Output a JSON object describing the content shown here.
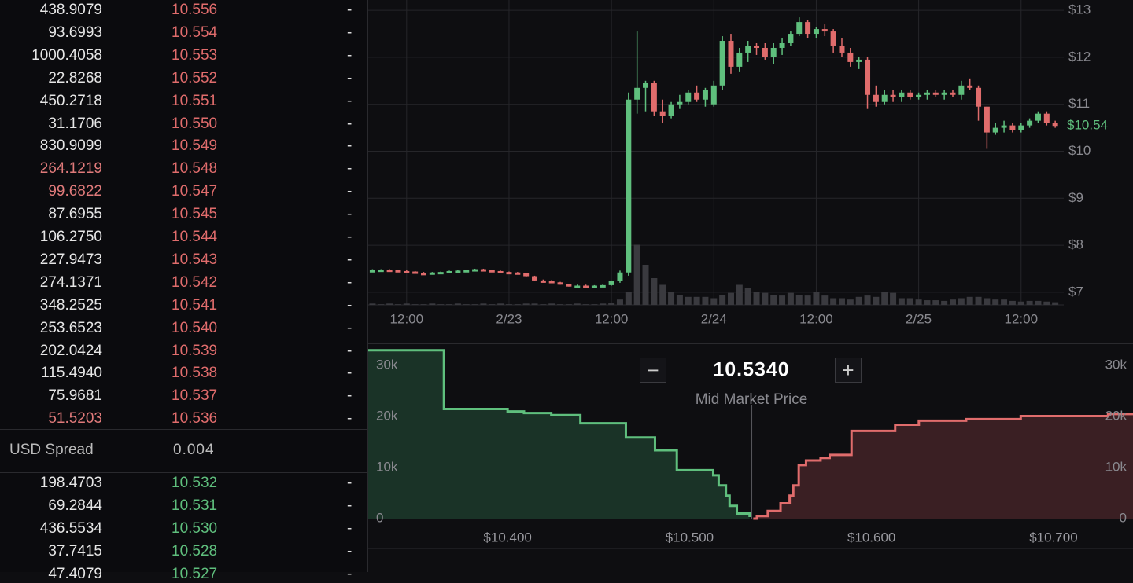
{
  "order_book": {
    "asks": [
      {
        "size": "438.9079",
        "price": "10.556",
        "change": "-"
      },
      {
        "size": "93.6993",
        "price": "10.554",
        "change": "-"
      },
      {
        "size": "1000.4058",
        "price": "10.553",
        "change": "-"
      },
      {
        "size": "22.8268",
        "price": "10.552",
        "change": "-"
      },
      {
        "size": "450.2718",
        "price": "10.551",
        "change": "-"
      },
      {
        "size": "31.1706",
        "price": "10.550",
        "change": "-"
      },
      {
        "size": "830.9099",
        "price": "10.549",
        "change": "-"
      },
      {
        "size": "264.1219",
        "price": "10.548",
        "change": "-",
        "highlight": true
      },
      {
        "size": "99.6822",
        "price": "10.547",
        "change": "-",
        "highlight": true
      },
      {
        "size": "87.6955",
        "price": "10.545",
        "change": "-"
      },
      {
        "size": "106.2750",
        "price": "10.544",
        "change": "-"
      },
      {
        "size": "227.9473",
        "price": "10.543",
        "change": "-"
      },
      {
        "size": "274.1371",
        "price": "10.542",
        "change": "-"
      },
      {
        "size": "348.2525",
        "price": "10.541",
        "change": "-"
      },
      {
        "size": "253.6523",
        "price": "10.540",
        "change": "-"
      },
      {
        "size": "202.0424",
        "price": "10.539",
        "change": "-"
      },
      {
        "size": "115.4940",
        "price": "10.538",
        "change": "-"
      },
      {
        "size": "75.9681",
        "price": "10.537",
        "change": "-"
      },
      {
        "size": "51.5203",
        "price": "10.536",
        "change": "-",
        "highlight": true
      }
    ],
    "spread": {
      "label": "USD Spread",
      "value": "0.004"
    },
    "bids": [
      {
        "size": "198.4703",
        "price": "10.532",
        "change": "-"
      },
      {
        "size": "69.2844",
        "price": "10.531",
        "change": "-"
      },
      {
        "size": "436.5534",
        "price": "10.530",
        "change": "-"
      },
      {
        "size": "37.7415",
        "price": "10.528",
        "change": "-"
      },
      {
        "size": "47.4079",
        "price": "10.527",
        "change": "-"
      }
    ]
  },
  "chart_data": [
    {
      "type": "candlestick",
      "x": [
        0,
        1,
        2,
        3,
        4,
        5,
        6,
        7,
        8,
        9,
        10,
        11,
        12,
        13,
        14,
        15,
        16,
        17,
        18,
        19,
        20,
        21,
        22,
        23,
        24,
        25,
        26,
        27,
        28,
        29,
        30,
        31,
        32,
        33,
        34,
        35,
        36,
        37,
        38,
        39,
        40,
        41,
        42,
        43,
        44,
        45,
        46,
        47,
        48,
        49,
        50,
        51,
        52,
        53,
        54,
        55,
        56,
        57,
        58,
        59,
        60,
        61,
        62,
        63,
        64,
        65,
        66,
        67,
        68,
        69,
        70,
        71,
        72,
        73,
        74,
        75,
        76,
        77,
        78,
        79,
        80
      ],
      "open": [
        7.47,
        7.47,
        7.48,
        7.47,
        7.45,
        7.44,
        7.41,
        7.4,
        7.42,
        7.43,
        7.45,
        7.46,
        7.47,
        7.49,
        7.47,
        7.45,
        7.43,
        7.42,
        7.4,
        7.34,
        7.25,
        7.24,
        7.21,
        7.17,
        7.13,
        7.14,
        7.13,
        7.14,
        7.15,
        7.24,
        7.42,
        11.1,
        11.35,
        11.45,
        10.85,
        10.75,
        11.0,
        11.05,
        11.25,
        11.1,
        11.0,
        11.4,
        12.35,
        11.8,
        12.1,
        12.25,
        12.2,
        12.0,
        12.2,
        12.3,
        12.5,
        12.75,
        12.5,
        12.6,
        12.55,
        12.25,
        12.1,
        11.9,
        11.95,
        11.2,
        11.05,
        11.2,
        11.15,
        11.25,
        11.15,
        11.2,
        11.25,
        11.2,
        11.25,
        11.2,
        11.4,
        11.35,
        10.95,
        10.4,
        10.5,
        10.55,
        10.45,
        10.55,
        10.65,
        10.8,
        10.6
      ],
      "high": [
        7.49,
        7.49,
        7.49,
        7.48,
        7.47,
        7.45,
        7.43,
        7.43,
        7.44,
        7.46,
        7.47,
        7.48,
        7.5,
        7.5,
        7.48,
        7.46,
        7.44,
        7.43,
        7.41,
        7.35,
        7.27,
        7.26,
        7.22,
        7.18,
        7.16,
        7.16,
        7.15,
        7.17,
        7.25,
        7.46,
        11.25,
        12.55,
        11.5,
        11.5,
        11.1,
        11.05,
        11.2,
        11.3,
        11.4,
        11.35,
        11.5,
        12.45,
        12.5,
        12.2,
        12.35,
        12.3,
        12.3,
        12.3,
        12.4,
        12.55,
        12.85,
        12.8,
        12.65,
        12.7,
        12.6,
        12.4,
        12.2,
        12.0,
        12.0,
        11.4,
        11.3,
        11.3,
        11.3,
        11.3,
        11.25,
        11.3,
        11.3,
        11.3,
        11.3,
        11.5,
        11.55,
        11.4,
        10.95,
        10.6,
        10.65,
        10.6,
        10.6,
        10.7,
        10.85,
        10.85,
        10.65
      ],
      "low": [
        7.45,
        7.46,
        7.46,
        7.44,
        7.43,
        7.4,
        7.39,
        7.39,
        7.41,
        7.42,
        7.44,
        7.45,
        7.46,
        7.46,
        7.44,
        7.42,
        7.41,
        7.39,
        7.33,
        7.24,
        7.22,
        7.2,
        7.16,
        7.12,
        7.1,
        7.12,
        7.12,
        7.13,
        7.14,
        7.2,
        7.35,
        10.8,
        10.85,
        10.75,
        10.6,
        10.7,
        10.9,
        11.0,
        11.05,
        10.95,
        10.95,
        11.3,
        11.65,
        11.7,
        11.9,
        12.05,
        11.95,
        11.85,
        12.05,
        12.25,
        12.45,
        12.4,
        12.4,
        12.45,
        12.1,
        12.0,
        11.8,
        11.75,
        10.9,
        10.95,
        11.0,
        11.05,
        11.05,
        11.1,
        11.1,
        11.1,
        11.15,
        11.1,
        11.15,
        11.1,
        11.3,
        10.65,
        10.05,
        10.35,
        10.4,
        10.4,
        10.4,
        10.5,
        10.6,
        10.55,
        10.5
      ],
      "close": [
        7.47,
        7.48,
        7.47,
        7.45,
        7.44,
        7.41,
        7.4,
        7.42,
        7.43,
        7.45,
        7.46,
        7.47,
        7.49,
        7.47,
        7.45,
        7.43,
        7.42,
        7.4,
        7.34,
        7.25,
        7.24,
        7.21,
        7.17,
        7.13,
        7.14,
        7.13,
        7.14,
        7.15,
        7.24,
        7.42,
        11.1,
        11.35,
        11.45,
        10.85,
        10.75,
        11.0,
        11.05,
        11.25,
        11.1,
        11.3,
        11.4,
        12.35,
        11.8,
        12.1,
        12.25,
        12.2,
        12.0,
        12.2,
        12.3,
        12.5,
        12.75,
        12.5,
        12.6,
        12.55,
        12.25,
        12.1,
        11.9,
        11.95,
        11.2,
        11.05,
        11.2,
        11.15,
        11.25,
        11.15,
        11.2,
        11.25,
        11.2,
        11.25,
        11.2,
        11.4,
        11.35,
        10.95,
        10.4,
        10.5,
        10.55,
        10.45,
        10.55,
        10.65,
        10.8,
        10.6,
        10.54
      ],
      "volume": [
        2,
        1,
        2,
        1,
        2,
        1,
        1,
        2,
        1,
        1,
        2,
        1,
        1,
        2,
        1,
        2,
        1,
        1,
        2,
        2,
        1,
        2,
        1,
        1,
        2,
        1,
        1,
        2,
        3,
        8,
        20,
        90,
        60,
        40,
        30,
        20,
        15,
        12,
        12,
        12,
        10,
        15,
        18,
        30,
        25,
        20,
        18,
        15,
        14,
        18,
        15,
        14,
        20,
        14,
        10,
        10,
        8,
        12,
        14,
        12,
        20,
        18,
        10,
        10,
        8,
        7,
        7,
        6,
        8,
        10,
        12,
        12,
        10,
        8,
        8,
        6,
        5,
        6,
        6,
        5,
        4
      ],
      "up_color": "#5fbf7d",
      "down_color": "#e06c6c",
      "volume_color": "#3a3a3f",
      "xlim": [
        -0.5,
        81
      ],
      "xticks": [
        {
          "value": 4,
          "label": "12:00"
        },
        {
          "value": 16,
          "label": "2/23"
        },
        {
          "value": 28,
          "label": "12:00"
        },
        {
          "value": 40,
          "label": "2/24"
        },
        {
          "value": 52,
          "label": "12:00"
        },
        {
          "value": 64,
          "label": "2/25"
        },
        {
          "value": 76,
          "label": "12:00"
        }
      ],
      "ylim": [
        6.73,
        13.22
      ],
      "yticks": [
        {
          "value": 7,
          "label": "$7"
        },
        {
          "value": 8,
          "label": "$8"
        },
        {
          "value": 9,
          "label": "$9"
        },
        {
          "value": 10,
          "label": "$10"
        },
        {
          "value": 11,
          "label": "$11"
        },
        {
          "value": 12,
          "label": "$12"
        },
        {
          "value": 13,
          "label": "$13"
        }
      ],
      "last_price": {
        "value": 10.54,
        "label": "$10.54"
      },
      "grid": true
    },
    {
      "type": "depth",
      "mid_price": {
        "value": 10.534,
        "label": "10.5340"
      },
      "mid_label": "Mid Market Price",
      "bids": {
        "color": "#5fbf7d",
        "fill": "#1a3327",
        "x": [
          10.3234,
          10.365,
          10.4,
          10.409,
          10.424,
          10.44,
          10.465,
          10.481,
          10.493,
          10.513,
          10.516,
          10.52,
          10.522,
          10.526,
          10.533
        ],
        "values": [
          33000,
          21500,
          21000,
          20700,
          20300,
          18700,
          15900,
          13400,
          9500,
          8500,
          6500,
          4500,
          2500,
          1000,
          300
        ]
      },
      "asks": {
        "color": "#e06c6c",
        "fill": "#3a1f23",
        "x": [
          10.535,
          10.537,
          10.543,
          10.55,
          10.555,
          10.557,
          10.56,
          10.564,
          10.572,
          10.577,
          10.589,
          10.613,
          10.626,
          10.652,
          10.682,
          10.73
        ],
        "values": [
          0,
          500,
          1500,
          3000,
          4500,
          6500,
          10500,
          11400,
          11900,
          12500,
          17200,
          18400,
          19200,
          19500,
          20100,
          20500
        ]
      },
      "xlim": [
        10.3234,
        10.7437
      ],
      "xticks": [
        {
          "value": 10.4,
          "label": "$10.400"
        },
        {
          "value": 10.5,
          "label": "$10.500"
        },
        {
          "value": 10.6,
          "label": "$10.600"
        },
        {
          "value": 10.7,
          "label": "$10.700"
        }
      ],
      "ylim": [
        0,
        34200
      ],
      "yticks": [
        0,
        {
          "value": 10000,
          "label": "10k"
        },
        {
          "value": 20000,
          "label": "20k"
        },
        {
          "value": 30000,
          "label": "30k"
        }
      ]
    }
  ]
}
